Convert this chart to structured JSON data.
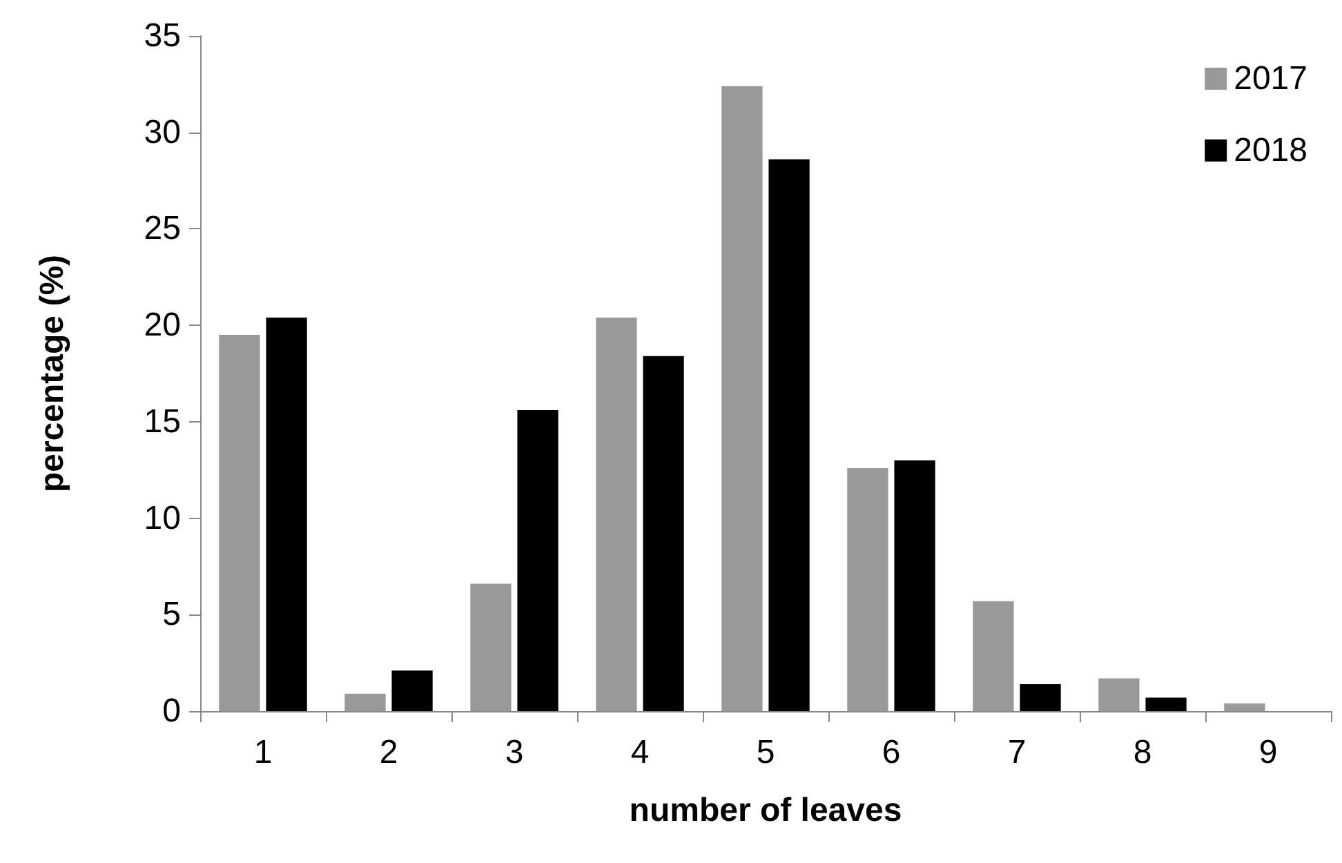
{
  "chart_data": {
    "type": "bar",
    "xlabel": "number of leaves",
    "ylabel": "percentage (%)",
    "categories": [
      "1",
      "2",
      "3",
      "4",
      "5",
      "6",
      "7",
      "8",
      "9"
    ],
    "series": [
      {
        "name": "2017",
        "color": "#999999",
        "values": [
          19.5,
          0.9,
          6.6,
          20.4,
          32.4,
          12.6,
          5.7,
          1.7,
          0.4
        ]
      },
      {
        "name": "2018",
        "color": "#000000",
        "values": [
          20.4,
          2.1,
          15.6,
          18.4,
          28.6,
          13.0,
          1.4,
          0.7,
          0
        ]
      }
    ],
    "ylim": [
      0,
      35
    ],
    "yticks": [
      0,
      5,
      10,
      15,
      20,
      25,
      30,
      35
    ],
    "grid": false,
    "legend": "top right"
  }
}
